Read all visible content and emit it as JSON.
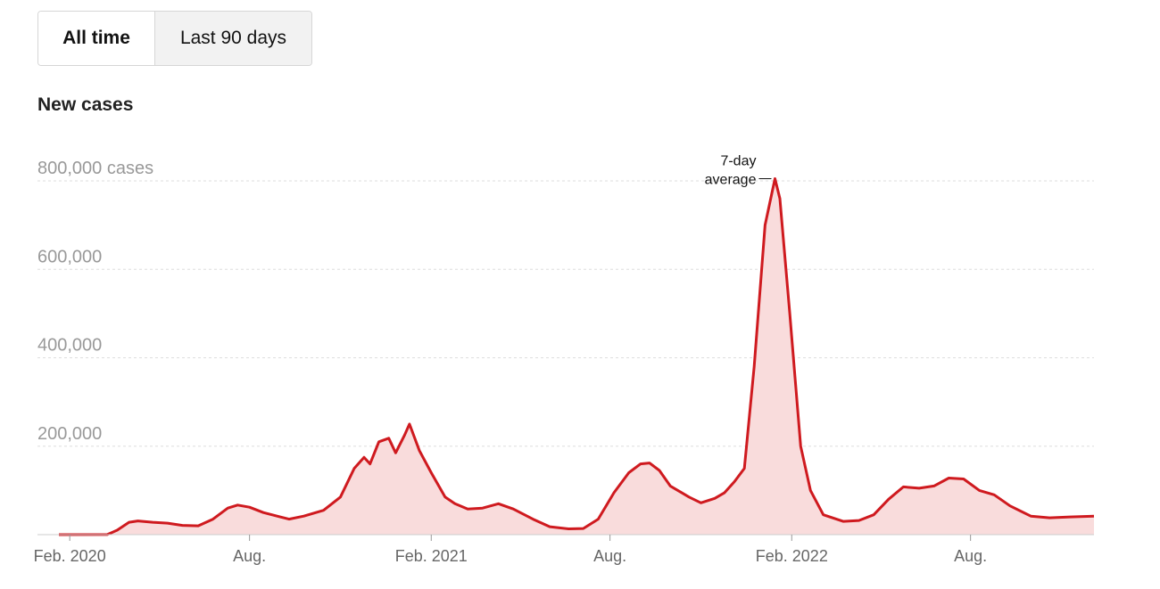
{
  "toggle": {
    "all_time_label": "All time",
    "last_90_label": "Last 90 days",
    "selected": "All time"
  },
  "colors": {
    "line": "#cf1a1f",
    "area": "#f9dcdc",
    "grid": "#dddddd",
    "axis": "#cccccc"
  },
  "chart_data": {
    "type": "area",
    "title": "New cases",
    "xlabel": "",
    "ylabel": "",
    "ylim": [
      0,
      800000
    ],
    "yticks": [
      {
        "value": 800000,
        "label": "800,000 cases"
      },
      {
        "value": 600000,
        "label": "600,000"
      },
      {
        "value": 400000,
        "label": "400,000"
      },
      {
        "value": 200000,
        "label": "200,000"
      }
    ],
    "xlim": [
      "2020-01-21",
      "2022-12-04"
    ],
    "xticks": [
      {
        "date": "2020-02-01",
        "label": "Feb. 2020"
      },
      {
        "date": "2020-08-01",
        "label": "Aug."
      },
      {
        "date": "2021-02-01",
        "label": "Feb. 2021"
      },
      {
        "date": "2021-08-01",
        "label": "Aug."
      },
      {
        "date": "2022-02-01",
        "label": "Feb. 2022"
      },
      {
        "date": "2022-08-01",
        "label": "Aug."
      }
    ],
    "grid": true,
    "annotation": {
      "lines": [
        "7-day",
        "average"
      ],
      "date": "2022-01-15",
      "value": 805000
    },
    "series": [
      {
        "points": [
          [
            "2020-01-21",
            0
          ],
          [
            "2020-03-10",
            200
          ],
          [
            "2020-03-20",
            10000
          ],
          [
            "2020-04-01",
            28000
          ],
          [
            "2020-04-10",
            31000
          ],
          [
            "2020-04-25",
            28000
          ],
          [
            "2020-05-10",
            26000
          ],
          [
            "2020-05-25",
            21000
          ],
          [
            "2020-06-10",
            20000
          ],
          [
            "2020-06-25",
            35000
          ],
          [
            "2020-07-10",
            60000
          ],
          [
            "2020-07-20",
            67000
          ],
          [
            "2020-08-01",
            62000
          ],
          [
            "2020-08-15",
            50000
          ],
          [
            "2020-09-01",
            40000
          ],
          [
            "2020-09-10",
            35000
          ],
          [
            "2020-09-25",
            42000
          ],
          [
            "2020-10-15",
            55000
          ],
          [
            "2020-11-01",
            85000
          ],
          [
            "2020-11-15",
            150000
          ],
          [
            "2020-11-25",
            175000
          ],
          [
            "2020-12-01",
            160000
          ],
          [
            "2020-12-10",
            210000
          ],
          [
            "2020-12-20",
            218000
          ],
          [
            "2020-12-27",
            185000
          ],
          [
            "2021-01-05",
            225000
          ],
          [
            "2021-01-10",
            250000
          ],
          [
            "2021-01-20",
            190000
          ],
          [
            "2021-02-01",
            140000
          ],
          [
            "2021-02-15",
            85000
          ],
          [
            "2021-02-25",
            70000
          ],
          [
            "2021-03-10",
            58000
          ],
          [
            "2021-03-25",
            60000
          ],
          [
            "2021-04-10",
            70000
          ],
          [
            "2021-04-25",
            58000
          ],
          [
            "2021-05-15",
            35000
          ],
          [
            "2021-06-01",
            18000
          ],
          [
            "2021-06-20",
            13000
          ],
          [
            "2021-07-05",
            14000
          ],
          [
            "2021-07-20",
            35000
          ],
          [
            "2021-08-05",
            95000
          ],
          [
            "2021-08-20",
            140000
          ],
          [
            "2021-09-01",
            160000
          ],
          [
            "2021-09-10",
            162000
          ],
          [
            "2021-09-20",
            145000
          ],
          [
            "2021-10-01",
            110000
          ],
          [
            "2021-10-20",
            85000
          ],
          [
            "2021-11-01",
            72000
          ],
          [
            "2021-11-15",
            82000
          ],
          [
            "2021-11-25",
            95000
          ],
          [
            "2021-12-05",
            120000
          ],
          [
            "2021-12-15",
            150000
          ],
          [
            "2021-12-25",
            380000
          ],
          [
            "2022-01-05",
            700000
          ],
          [
            "2022-01-15",
            805000
          ],
          [
            "2022-01-20",
            760000
          ],
          [
            "2022-01-30",
            500000
          ],
          [
            "2022-02-10",
            200000
          ],
          [
            "2022-02-20",
            100000
          ],
          [
            "2022-03-05",
            45000
          ],
          [
            "2022-03-25",
            30000
          ],
          [
            "2022-04-10",
            32000
          ],
          [
            "2022-04-25",
            45000
          ],
          [
            "2022-05-10",
            80000
          ],
          [
            "2022-05-25",
            108000
          ],
          [
            "2022-06-10",
            105000
          ],
          [
            "2022-06-25",
            110000
          ],
          [
            "2022-07-10",
            128000
          ],
          [
            "2022-07-25",
            126000
          ],
          [
            "2022-08-10",
            100000
          ],
          [
            "2022-08-25",
            90000
          ],
          [
            "2022-09-10",
            65000
          ],
          [
            "2022-10-01",
            42000
          ],
          [
            "2022-10-20",
            38000
          ],
          [
            "2022-11-10",
            40000
          ],
          [
            "2022-12-04",
            42000
          ]
        ]
      }
    ]
  }
}
